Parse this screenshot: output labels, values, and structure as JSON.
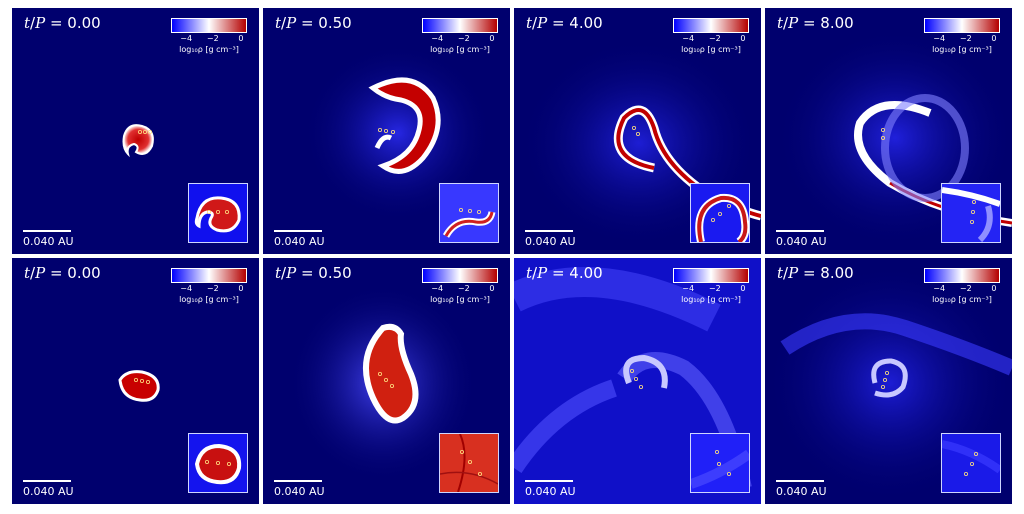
{
  "colorbar": {
    "ticks": [
      "−4",
      "−2",
      "0"
    ],
    "label": "log₁₀ρ [g cm⁻³]"
  },
  "scale_bar_label": "0.040 AU",
  "colors": {
    "background": "#00006e",
    "low": "#0000ff",
    "mid": "#ffffff",
    "high": "#b40000"
  },
  "rows": [
    {
      "panels": [
        {
          "t_value": "0.00"
        },
        {
          "t_value": "0.50"
        },
        {
          "t_value": "4.00"
        },
        {
          "t_value": "8.00"
        }
      ]
    },
    {
      "panels": [
        {
          "t_value": "0.00"
        },
        {
          "t_value": "0.50"
        },
        {
          "t_value": "4.00"
        },
        {
          "t_value": "8.00"
        }
      ]
    }
  ]
}
